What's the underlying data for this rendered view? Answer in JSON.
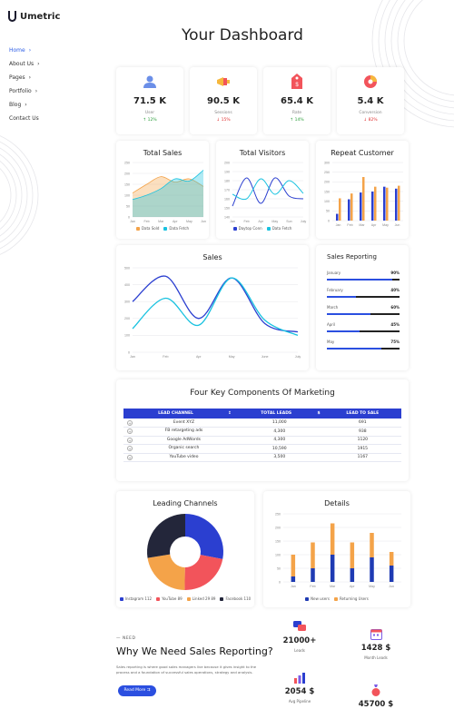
{
  "brand": {
    "name": "Umetric"
  },
  "nav": [
    {
      "label": "Home",
      "active": true,
      "arrow": "›"
    },
    {
      "label": "About Us",
      "arrow": "›"
    },
    {
      "label": "Pages",
      "arrow": "›"
    },
    {
      "label": "Portfolio",
      "arrow": "›"
    },
    {
      "label": "Blog",
      "arrow": "›"
    },
    {
      "label": "Contact Us",
      "arrow": ""
    }
  ],
  "page_title": "Your Dashboard",
  "stats": [
    {
      "value": "71.5 K",
      "label": "User",
      "change": "↑ 12%",
      "color": "#2a9d3a",
      "icon": "user-icon"
    },
    {
      "value": "90.5 K",
      "label": "Sessions",
      "change": "↓ 15%",
      "color": "#e03131",
      "icon": "megaphone-icon"
    },
    {
      "value": "65.4 K",
      "label": "Rate",
      "change": "↑ 14%",
      "color": "#2a9d3a",
      "icon": "price-tag-icon"
    },
    {
      "value": "5.4 K",
      "label": "Conversion",
      "change": "↓ 82%",
      "color": "#e03131",
      "icon": "pie-chart-icon"
    }
  ],
  "colors": {
    "accent": "#2b4fe0",
    "cyan": "#19c2e0",
    "orange": "#f4a349",
    "navy": "#1a237e"
  },
  "chart_data": [
    {
      "type": "area",
      "title": "Total Sales",
      "categories": [
        "Jan",
        "Feb",
        "Mar",
        "Apr",
        "May",
        "Jun"
      ],
      "ylim": [
        0,
        250
      ],
      "yticks": [
        "0",
        "50",
        "100",
        "150",
        "200",
        "250"
      ],
      "series": [
        {
          "name": "Data Sold",
          "color": "#f4a349",
          "values": [
            110,
            150,
            185,
            160,
            175,
            140
          ]
        },
        {
          "name": "Data Fetch",
          "color": "#19c2e0",
          "values": [
            80,
            100,
            130,
            175,
            165,
            215
          ]
        }
      ],
      "legend": "bottom"
    },
    {
      "type": "line",
      "title": "Total Visitors",
      "categories": [
        "Jan",
        "Feb",
        "Apr",
        "May",
        "Sun",
        "July"
      ],
      "ylim": [
        140,
        200
      ],
      "yticks": [
        "140",
        "150",
        "160",
        "170",
        "180",
        "190",
        "200"
      ],
      "series": [
        {
          "name": "Daytop Conn",
          "color": "#2b3fd0",
          "values": [
            152,
            183,
            155,
            183,
            163,
            160
          ]
        },
        {
          "name": "Data Fetch",
          "color": "#19c2e0",
          "values": [
            165,
            160,
            182,
            165,
            180,
            166
          ]
        }
      ],
      "legend": "bottom"
    },
    {
      "type": "bar",
      "title": "Repeat Customer",
      "categories": [
        "Jan",
        "Feb",
        "Mar",
        "Apr",
        "May",
        "Jun"
      ],
      "ylim": [
        0,
        300
      ],
      "yticks": [
        "0",
        "50",
        "100",
        "150",
        "200",
        "250",
        "300"
      ],
      "series": [
        {
          "color": "#2b3fd0",
          "values": [
            35,
            110,
            145,
            150,
            175,
            165
          ]
        },
        {
          "color": "#f4a349",
          "values": [
            115,
            140,
            225,
            175,
            170,
            180
          ]
        }
      ]
    },
    {
      "type": "line",
      "title": "Sales",
      "categories": [
        "Jan",
        "Feb",
        "Apr",
        "May",
        "June",
        "July"
      ],
      "ylim": [
        0,
        500
      ],
      "yticks": [
        "0",
        "100",
        "200",
        "300",
        "400",
        "500"
      ],
      "series": [
        {
          "color": "#2b3fd0",
          "values": [
            300,
            450,
            200,
            440,
            170,
            120
          ]
        },
        {
          "color": "#19c2e0",
          "values": [
            140,
            320,
            160,
            440,
            190,
            100
          ]
        }
      ]
    },
    {
      "type": "bar",
      "title": "Details",
      "categories": [
        "Jan",
        "Feb",
        "Mar",
        "Apr",
        "May",
        "Jun"
      ],
      "ylim": [
        0,
        250
      ],
      "yticks": [
        "0",
        "50",
        "100",
        "150",
        "200",
        "250"
      ],
      "stacked": true,
      "series": [
        {
          "name": "New users",
          "color": "#1f3bb3",
          "values": [
            20,
            50,
            100,
            50,
            90,
            60
          ]
        },
        {
          "name": "Returning Users",
          "color": "#f4a349",
          "values": [
            80,
            95,
            115,
            95,
            90,
            50
          ]
        }
      ],
      "legend": "bottom"
    },
    {
      "type": "pie",
      "title": "Leading Channels",
      "series": [
        {
          "name": "Instagram 112",
          "color": "#2b3fd0",
          "value": 112
        },
        {
          "name": "YouTube 89",
          "color": "#f2545b",
          "value": 89
        },
        {
          "name": "Linked 29 89",
          "color": "#f4a349",
          "value": 89
        },
        {
          "name": "Facebook 110",
          "color": "#23263a",
          "value": 110
        }
      ],
      "legend": "bottom"
    }
  ],
  "sales_reporting": {
    "title": "Sales Reporting",
    "rows": [
      {
        "month": "January",
        "pct": "90%",
        "value": 0.9
      },
      {
        "month": "February",
        "pct": "40%",
        "value": 0.4
      },
      {
        "month": "March",
        "pct": "60%",
        "value": 0.6
      },
      {
        "month": "April",
        "pct": "45%",
        "value": 0.45
      },
      {
        "month": "May",
        "pct": "75%",
        "value": 0.75
      }
    ]
  },
  "marketing": {
    "title": "Four Key Components Of Marketing",
    "headers": [
      "LEAD CHANNEL",
      "TOTAL LEADS",
      "LEAD TO SALE"
    ],
    "sort_icons": [
      "↕",
      "$"
    ],
    "rows": [
      [
        "Event XYZ",
        "11,000",
        "691"
      ],
      [
        "FB retargeting ads",
        "4,300",
        "938"
      ],
      [
        "Google AdWords",
        "4,300",
        "1120"
      ],
      [
        "Organic search",
        "10,590",
        "1915"
      ],
      [
        "YouTube video",
        "3,500",
        "1167"
      ]
    ]
  },
  "why": {
    "eyebrow": "NEED",
    "title": "Why We Need Sales Reporting?",
    "body_line1": "Sales reporting is where good sales managers live because it gives insight to the",
    "body_line2": "process and a foundation of successful sales operations, strategy and analysis.",
    "button": "Read More ⇉"
  },
  "kpis": [
    {
      "value": "21000+",
      "label": "Leads",
      "icon": "chat-bubbles-icon"
    },
    {
      "value": "1428 $",
      "label": "Month Leads",
      "icon": "calendar-icon"
    },
    {
      "value": "2054 $",
      "label": "Avg Pipeline",
      "icon": "bar-growth-icon"
    },
    {
      "value": "45700 $",
      "label": "",
      "icon": "money-bag-icon"
    }
  ]
}
